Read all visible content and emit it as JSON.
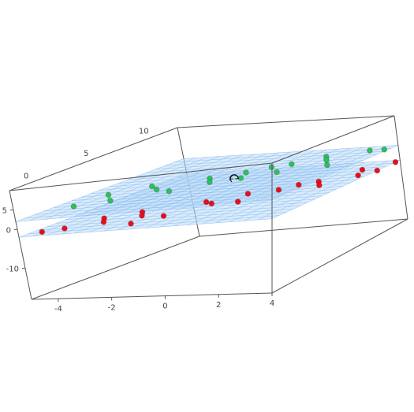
{
  "chart_data": {
    "type": "scatter",
    "subtype": "3d-scatter-with-planes",
    "title": "",
    "x_ticks": [
      "-4",
      "-2",
      "0",
      "2",
      "4"
    ],
    "y_ticks": [
      "0",
      "5",
      "10"
    ],
    "z_ticks": [
      "-10",
      "0",
      "5"
    ],
    "xlim": [
      -5,
      4
    ],
    "ylim": [
      -2,
      12
    ],
    "zlim": [
      -18,
      10
    ],
    "planes": [
      {
        "name": "",
        "z": 2,
        "color": "#bcdcfa"
      },
      {
        "name": "",
        "z": -2,
        "color": "#bcdcfa"
      }
    ],
    "series": [
      {
        "name": "",
        "color": "#22c55e",
        "points": [
          [
            -4.2,
            1.0,
            2
          ],
          [
            -4.0,
            3.5,
            2
          ],
          [
            -3.2,
            1.8,
            2
          ],
          [
            -3.0,
            5.0,
            2
          ],
          [
            -2.4,
            4.0,
            2
          ],
          [
            -1.6,
            3.2,
            2
          ],
          [
            -1.2,
            6.0,
            2
          ],
          [
            -0.8,
            5.0,
            2
          ],
          [
            -0.2,
            7.0,
            2
          ],
          [
            0.4,
            8.0,
            2
          ],
          [
            0.2,
            5.5,
            2
          ],
          [
            1.0,
            8.5,
            2
          ],
          [
            1.2,
            6.5,
            2
          ],
          [
            1.8,
            10.0,
            2
          ],
          [
            2.2,
            9.0,
            2
          ],
          [
            2.8,
            7.5,
            2
          ],
          [
            3.2,
            11.0,
            2
          ],
          [
            3.8,
            11.0,
            2
          ]
        ]
      },
      {
        "name": "",
        "color": "#e0121f",
        "points": [
          [
            -4.6,
            -1.0,
            -2
          ],
          [
            -4.0,
            -0.5,
            -2
          ],
          [
            -3.4,
            1.5,
            -2
          ],
          [
            -3.0,
            0.5,
            -2
          ],
          [
            -2.4,
            2.5,
            -2
          ],
          [
            -2.0,
            1.5,
            -2
          ],
          [
            -1.6,
            -0.5,
            -2
          ],
          [
            -1.0,
            1.0,
            -2
          ],
          [
            -0.6,
            4.0,
            -2
          ],
          [
            -0.2,
            3.5,
            -2
          ],
          [
            0.4,
            5.5,
            -2
          ],
          [
            0.8,
            3.5,
            -2
          ],
          [
            1.4,
            6.0,
            -2
          ],
          [
            1.8,
            7.0,
            -2
          ],
          [
            2.4,
            7.5,
            -2
          ],
          [
            2.8,
            6.5,
            -2
          ],
          [
            3.2,
            10.0,
            -2
          ],
          [
            3.6,
            8.5,
            -2
          ],
          [
            4.0,
            9.5,
            -2
          ],
          [
            4.0,
            11.5,
            -2
          ]
        ]
      }
    ],
    "grid": true,
    "legend": "none"
  },
  "icons": {
    "cursor": "rotate-cursor-icon"
  }
}
